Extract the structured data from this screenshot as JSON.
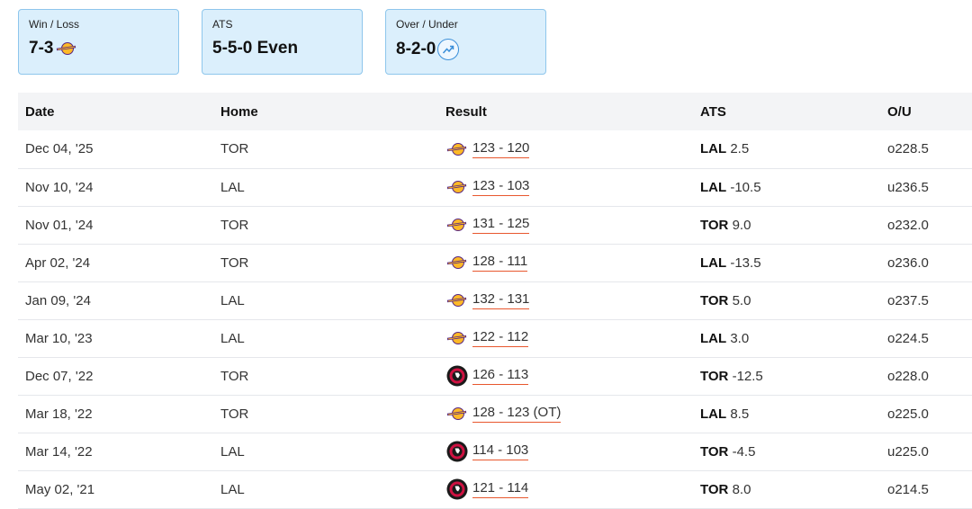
{
  "summary": {
    "win_loss": {
      "label": "Win / Loss",
      "value": "7-3"
    },
    "ats": {
      "label": "ATS",
      "value": "5-5-0 Even"
    },
    "over_under": {
      "label": "Over / Under",
      "value": "8-2-0"
    }
  },
  "colors": {
    "card_bg": "#dbeffc",
    "card_border": "#8ec6ec",
    "score_underline": "#e8572e",
    "lakers_purple": "#552583",
    "lakers_gold": "#fdb927",
    "raptors_red": "#ce1141"
  },
  "icons": {
    "trend": "trend-up-icon",
    "lakers": "lakers-logo-icon",
    "raptors": "raptors-logo-icon"
  },
  "table": {
    "headers": {
      "date": "Date",
      "home": "Home",
      "result": "Result",
      "ats": "ATS",
      "ou": "O/U"
    },
    "rows": [
      {
        "date": "Dec 04, '25",
        "home": "TOR",
        "winner": "LAL",
        "score": "123 - 120",
        "ats_team": "LAL",
        "ats_line": "2.5",
        "ou": "o228.5"
      },
      {
        "date": "Nov 10, '24",
        "home": "LAL",
        "winner": "LAL",
        "score": "123 - 103",
        "ats_team": "LAL",
        "ats_line": "-10.5",
        "ou": "u236.5"
      },
      {
        "date": "Nov 01, '24",
        "home": "TOR",
        "winner": "LAL",
        "score": "131 - 125",
        "ats_team": "TOR",
        "ats_line": "9.0",
        "ou": "o232.0"
      },
      {
        "date": "Apr 02, '24",
        "home": "TOR",
        "winner": "LAL",
        "score": "128 - 111",
        "ats_team": "LAL",
        "ats_line": "-13.5",
        "ou": "o236.0"
      },
      {
        "date": "Jan 09, '24",
        "home": "LAL",
        "winner": "LAL",
        "score": "132 - 131",
        "ats_team": "TOR",
        "ats_line": "5.0",
        "ou": "o237.5"
      },
      {
        "date": "Mar 10, '23",
        "home": "LAL",
        "winner": "LAL",
        "score": "122 - 112",
        "ats_team": "LAL",
        "ats_line": "3.0",
        "ou": "o224.5"
      },
      {
        "date": "Dec 07, '22",
        "home": "TOR",
        "winner": "TOR",
        "score": "126 - 113",
        "ats_team": "TOR",
        "ats_line": "-12.5",
        "ou": "o228.0"
      },
      {
        "date": "Mar 18, '22",
        "home": "TOR",
        "winner": "LAL",
        "score": "128 - 123 (OT)",
        "ats_team": "LAL",
        "ats_line": "8.5",
        "ou": "o225.0"
      },
      {
        "date": "Mar 14, '22",
        "home": "LAL",
        "winner": "TOR",
        "score": "114 - 103",
        "ats_team": "TOR",
        "ats_line": "-4.5",
        "ou": "u225.0"
      },
      {
        "date": "May 02, '21",
        "home": "LAL",
        "winner": "TOR",
        "score": "121 - 114",
        "ats_team": "TOR",
        "ats_line": "8.0",
        "ou": "o214.5"
      }
    ]
  }
}
